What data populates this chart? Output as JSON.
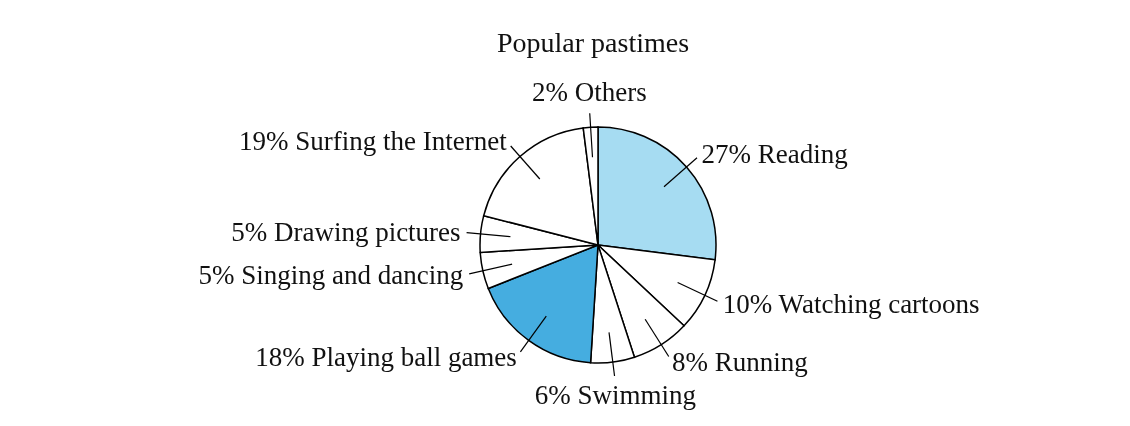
{
  "chart_data": {
    "type": "pie",
    "title": "Popular pastimes",
    "categories": [
      "Reading",
      "Watching cartoons",
      "Running",
      "Swimming",
      "Playing ball games",
      "Singing and dancing",
      "Drawing pictures",
      "Surfing the Internet",
      "Others"
    ],
    "values": [
      27,
      10,
      8,
      6,
      18,
      5,
      5,
      19,
      2
    ],
    "colors": [
      "#a6dcf2",
      "#ffffff",
      "#ffffff",
      "#ffffff",
      "#45ade0",
      "#ffffff",
      "#ffffff",
      "#ffffff",
      "#ffffff"
    ],
    "value_labels": [
      "27%",
      "10%",
      "8%",
      "6%",
      "18%",
      "5%",
      "5%",
      "19%",
      "2%"
    ],
    "legend": false
  }
}
